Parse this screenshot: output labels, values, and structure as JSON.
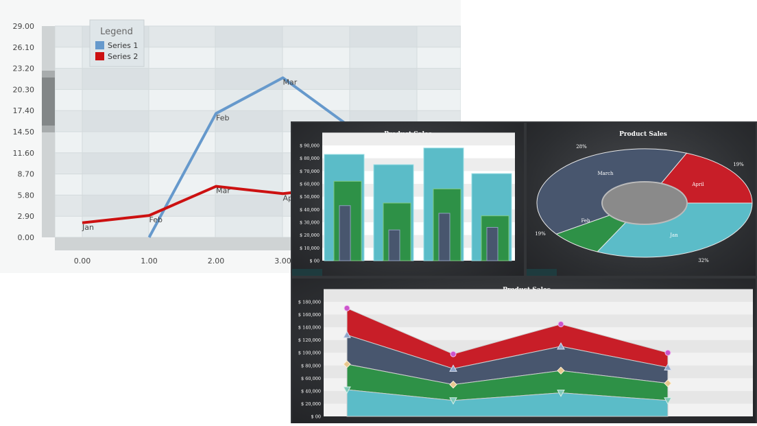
{
  "colors": {
    "series1": "#6699cc",
    "series2": "#cc1111",
    "teal": "#5bbcc8",
    "green": "#2e9147",
    "slate": "#48566e",
    "red": "#c81e28",
    "pink_marker": "#cc55cc",
    "tan_marker": "#e8c890"
  },
  "chart_data": [
    {
      "type": "line",
      "legend": {
        "title": "Legend",
        "position": "top-left"
      },
      "x_ticks": [
        "0.00",
        "1.00",
        "2.00",
        "3.00"
      ],
      "y_ticks": [
        "0.00",
        "2.90",
        "5.80",
        "8.70",
        "11.60",
        "14.50",
        "17.40",
        "20.30",
        "23.20",
        "26.10",
        "29.00"
      ],
      "ylim": [
        0,
        29
      ],
      "grid": true,
      "series": [
        {
          "name": "Series 1",
          "x": [
            1,
            2,
            3,
            4
          ],
          "y": [
            0,
            17.0,
            21.9,
            15.2
          ],
          "labels": [
            "",
            "Feb",
            "Mar",
            ""
          ]
        },
        {
          "name": "Series 2",
          "x": [
            0,
            1,
            2,
            3,
            4
          ],
          "y": [
            2.0,
            3.0,
            7.0,
            6.0,
            7.0
          ],
          "labels": [
            "Jan",
            "Feb",
            "Mar",
            "Apr",
            ""
          ]
        }
      ]
    },
    {
      "type": "bar",
      "title": "Product Sales",
      "y_ticks": [
        "$ 00",
        "$ 10,000",
        "$ 20,000",
        "$ 30,000",
        "$ 40,000",
        "$ 50,000",
        "$ 60,000",
        "$ 70,000",
        "$ 80,000",
        "$ 90,000"
      ],
      "ylim": [
        0,
        90000
      ],
      "series": [
        {
          "values": [
            83000,
            75000,
            88000,
            68000
          ]
        },
        {
          "values": [
            62000,
            45000,
            56000,
            35000
          ]
        },
        {
          "values": [
            43000,
            24000,
            37000,
            26000
          ]
        }
      ]
    },
    {
      "type": "pie",
      "title": "Product Sales",
      "slices": [
        {
          "label": "March",
          "percent": "28%",
          "value": 28
        },
        {
          "label": "April",
          "percent": "19%",
          "value": 19
        },
        {
          "label": "Jan",
          "percent": "32%",
          "value": 32
        },
        {
          "label": "Feb",
          "percent": "19%",
          "value": 19
        }
      ]
    },
    {
      "type": "area",
      "title": "Product Sales",
      "y_ticks": [
        "$ 00",
        "$ 20,000",
        "$ 40,000",
        "$ 60,000",
        "$ 80,000",
        "$ 100,000",
        "$ 120,000",
        "$ 140,000",
        "$ 160,000",
        "$ 180,000"
      ],
      "ylim": [
        0,
        180000
      ],
      "stacked": true,
      "series": [
        {
          "values": [
            42000,
            25000,
            37000,
            25000
          ]
        },
        {
          "values": [
            82000,
            50000,
            72000,
            52000
          ]
        },
        {
          "values": [
            128000,
            75000,
            110000,
            77000
          ]
        },
        {
          "values": [
            170000,
            98000,
            145000,
            100000
          ]
        }
      ]
    }
  ]
}
